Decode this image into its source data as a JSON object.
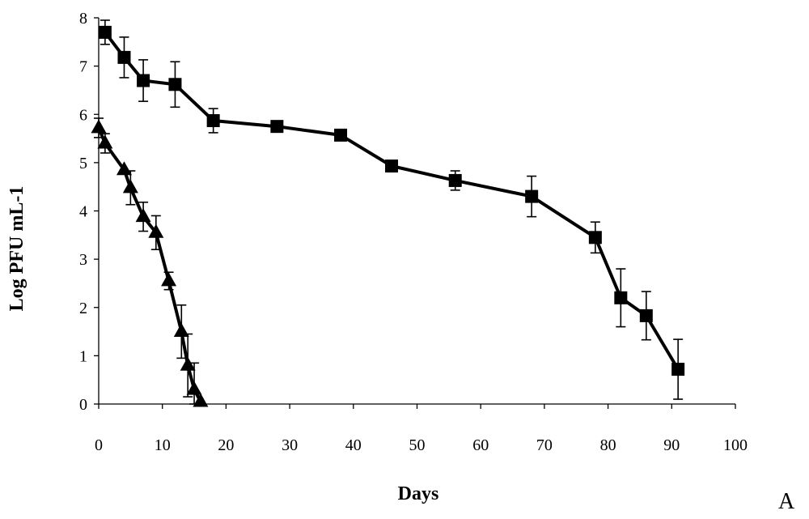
{
  "chart_data": {
    "type": "line",
    "title": "",
    "xlabel": "Days",
    "ylabel": "Log PFU mL-1",
    "panel_label": "A",
    "xlim": [
      0,
      100
    ],
    "ylim": [
      0,
      8
    ],
    "x_ticks": [
      0,
      10,
      20,
      30,
      40,
      50,
      60,
      70,
      80,
      90,
      100
    ],
    "y_ticks": [
      0,
      1,
      2,
      3,
      4,
      5,
      6,
      7,
      8
    ],
    "grid": false,
    "legend": "none",
    "series": [
      {
        "name": "squares",
        "marker": "square",
        "color": "#000000",
        "points": [
          {
            "x": 1,
            "y": 7.7,
            "err": 0.25
          },
          {
            "x": 4,
            "y": 7.18,
            "err": 0.42
          },
          {
            "x": 7,
            "y": 6.7,
            "err": 0.43
          },
          {
            "x": 12,
            "y": 6.62,
            "err": 0.47
          },
          {
            "x": 18,
            "y": 5.87,
            "err": 0.25
          },
          {
            "x": 28,
            "y": 5.75,
            "err": 0
          },
          {
            "x": 38,
            "y": 5.57,
            "err": 0
          },
          {
            "x": 46,
            "y": 4.93,
            "err": 0
          },
          {
            "x": 56,
            "y": 4.63,
            "err": 0.2
          },
          {
            "x": 68,
            "y": 4.3,
            "err": 0.42
          },
          {
            "x": 78,
            "y": 3.45,
            "err": 0.32
          },
          {
            "x": 82,
            "y": 2.2,
            "err": 0.6
          },
          {
            "x": 86,
            "y": 1.83,
            "err": 0.5
          },
          {
            "x": 91,
            "y": 0.72,
            "err": 0.62
          }
        ]
      },
      {
        "name": "triangles",
        "marker": "triangle",
        "color": "#000000",
        "points": [
          {
            "x": 0,
            "y": 5.72,
            "err": 0.2
          },
          {
            "x": 1,
            "y": 5.4,
            "err": 0.2
          },
          {
            "x": 4,
            "y": 4.85,
            "err": 0
          },
          {
            "x": 5,
            "y": 4.48,
            "err": 0.35
          },
          {
            "x": 7,
            "y": 3.88,
            "err": 0.3
          },
          {
            "x": 9,
            "y": 3.55,
            "err": 0.35
          },
          {
            "x": 11,
            "y": 2.55,
            "err": 0.18
          },
          {
            "x": 13,
            "y": 1.5,
            "err": 0.55
          },
          {
            "x": 14,
            "y": 0.8,
            "err": 0.65
          },
          {
            "x": 15,
            "y": 0.3,
            "err": 0.55
          },
          {
            "x": 16,
            "y": 0.05,
            "err": 0
          }
        ]
      }
    ]
  }
}
